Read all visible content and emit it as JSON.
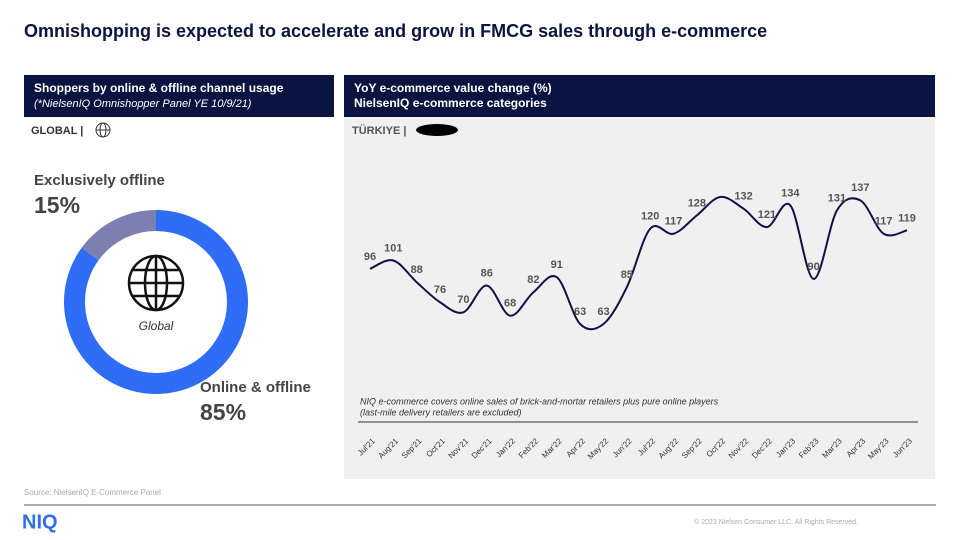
{
  "title": "Omnishopping is expected to accelerate and grow in FMCG sales through e-commerce",
  "chart_data": [
    {
      "type": "donut",
      "title": "Shoppers by online & offline channel usage",
      "subtitle": "(*NielsenIQ Omnishopper Panel YE 10/9/21)",
      "region": "GLOBAL |",
      "center_label": "Global",
      "categories": [
        "Exclusively offline",
        "Online & offline"
      ],
      "values": [
        15,
        85
      ],
      "value_labels": [
        "15%",
        "85%"
      ],
      "colors": [
        "#7b80b0",
        "#2f6df6"
      ]
    },
    {
      "type": "line",
      "title": "YoY e-commerce value change (%)",
      "subtitle": "NielsenIQ e-commerce categories",
      "region": "TÜRKIYE |",
      "note": [
        "NIQ e-commerce covers online sales of brick-and-mortar retailers plus pure online players",
        "(last-mile delivery retailers are excluded)"
      ],
      "categories": [
        "Jul'21",
        "Aug'21",
        "Sep'21",
        "Oct'21",
        "Nov'21",
        "Dec'21",
        "Jan'22",
        "Feb'22",
        "Mar'22",
        "Apr'22",
        "May'22",
        "Jun'22",
        "Jul'22",
        "Aug'22",
        "Sep'22",
        "Oct'22",
        "Nov'22",
        "Dec'22",
        "Jan'23",
        "Feb'23",
        "Mar'23",
        "Apr'23",
        "May'23",
        "Jun'23"
      ],
      "values": [
        96,
        101,
        88,
        76,
        70,
        86,
        68,
        82,
        91,
        63,
        63,
        85,
        120,
        117,
        128,
        139,
        132,
        121,
        134,
        90,
        131,
        137,
        117,
        119
      ],
      "value_labels": [
        "96",
        "101",
        "88",
        "76",
        "70",
        "86",
        "68",
        "82",
        "91",
        "63",
        "63",
        "85",
        "120",
        "117",
        "128",
        null,
        "132",
        "121",
        "134",
        "90",
        "131",
        "137",
        "117",
        "119"
      ],
      "color": "#0e1245"
    }
  ],
  "source": "Source: NielsenIQ E-Commerce Panel",
  "logo": "NIQ",
  "copyright": "© 2023 Nielsen Consumer LLC. All Rights Reserved."
}
